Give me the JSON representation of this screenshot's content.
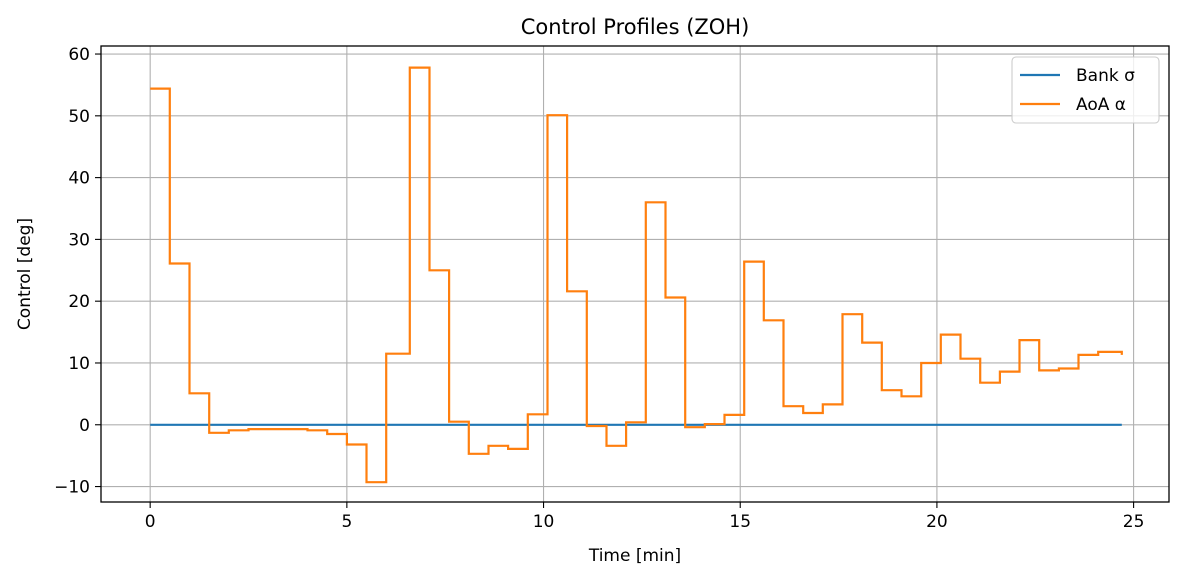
{
  "chart_data": {
    "type": "line",
    "step": "post",
    "title": "Control Profiles (ZOH)",
    "xlabel": "Time [min]",
    "ylabel": "Control [deg]",
    "xlim": [
      -1.25,
      25.9
    ],
    "ylim": [
      -12.5,
      61.3
    ],
    "xticks": [
      0,
      5,
      10,
      15,
      20,
      25
    ],
    "xtick_labels": [
      "0",
      "5",
      "10",
      "15",
      "20",
      "25"
    ],
    "yticks": [
      -10,
      0,
      10,
      20,
      30,
      40,
      50,
      60
    ],
    "ytick_labels": [
      "−10",
      "0",
      "10",
      "20",
      "30",
      "40",
      "50",
      "60"
    ],
    "grid": true,
    "legend_position": "top-right",
    "x": [
      0,
      0.5,
      1.0,
      1.5,
      2.0,
      2.5,
      3.0,
      3.5,
      4.0,
      4.5,
      5.0,
      5.5,
      6.0,
      6.6,
      7.1,
      7.6,
      8.1,
      8.6,
      9.1,
      9.6,
      10.1,
      10.6,
      11.1,
      11.6,
      12.1,
      12.6,
      13.1,
      13.6,
      14.1,
      14.6,
      15.1,
      15.6,
      16.1,
      16.6,
      17.1,
      17.6,
      18.1,
      18.6,
      19.1,
      19.6,
      20.1,
      20.6,
      21.1,
      21.6,
      22.1,
      22.6,
      23.1,
      23.6,
      24.1,
      24.7
    ],
    "series": [
      {
        "name": "Bank σ",
        "color": "#1f77b4",
        "values": [
          0,
          0,
          0,
          0,
          0,
          0,
          0,
          0,
          0,
          0,
          0,
          0,
          0,
          0,
          0,
          0,
          0,
          0,
          0,
          0,
          0,
          0,
          0,
          0,
          0,
          0,
          0,
          0,
          0,
          0,
          0,
          0,
          0,
          0,
          0,
          0,
          0,
          0,
          0,
          0,
          0,
          0,
          0,
          0,
          0,
          0,
          0,
          0,
          0,
          0
        ]
      },
      {
        "name": "AoA α",
        "color": "#ff7f0e",
        "values": [
          54.4,
          26.1,
          5.1,
          -1.3,
          -0.9,
          -0.7,
          -0.7,
          -0.7,
          -0.9,
          -1.5,
          -3.2,
          -9.3,
          11.5,
          57.8,
          25.0,
          0.5,
          -4.7,
          -3.4,
          -3.9,
          1.7,
          50.1,
          21.6,
          -0.2,
          -3.4,
          0.4,
          36.0,
          20.6,
          -0.4,
          0.1,
          1.6,
          26.4,
          16.9,
          3.0,
          1.9,
          3.3,
          17.9,
          13.3,
          5.6,
          4.6,
          10.0,
          14.6,
          10.7,
          6.8,
          8.6,
          13.7,
          8.8,
          9.1,
          11.3,
          11.8,
          11.3
        ]
      }
    ]
  }
}
